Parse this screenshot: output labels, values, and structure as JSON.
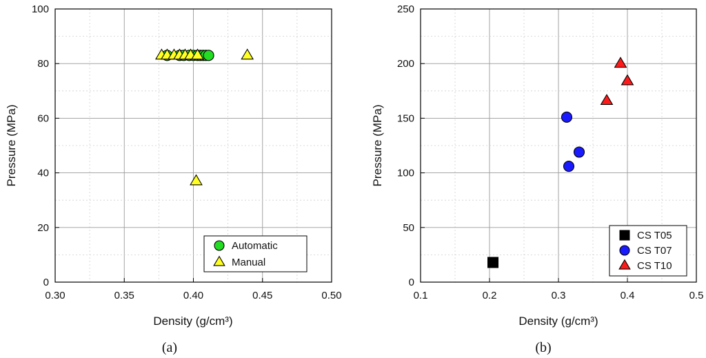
{
  "chart_data": [
    {
      "type": "scatter",
      "panel_label": "(a)",
      "xlabel": "Density (g/cm³)",
      "ylabel": "Pressure (MPa)",
      "xlim": [
        0.3,
        0.5
      ],
      "ylim": [
        0,
        100
      ],
      "xticks": [
        "0.30",
        "0.35",
        "0.40",
        "0.45",
        "0.50"
      ],
      "yticks": [
        "0",
        "20",
        "40",
        "60",
        "80",
        "100"
      ],
      "grid": true,
      "legend_position": "bottom-right",
      "series": [
        {
          "name": "Automatic",
          "marker": "circle",
          "color": "#22dd22",
          "x": [
            0.381,
            0.39,
            0.393,
            0.397,
            0.4,
            0.403,
            0.405,
            0.407,
            0.409,
            0.411
          ],
          "y": [
            83,
            83,
            83,
            83,
            83,
            83,
            83,
            83,
            83,
            83
          ]
        },
        {
          "name": "Manual",
          "marker": "triangle",
          "color": "#ffff22",
          "x": [
            0.377,
            0.381,
            0.386,
            0.39,
            0.394,
            0.398,
            0.403,
            0.439,
            0.402
          ],
          "y": [
            83,
            83,
            83,
            83,
            83,
            83,
            83,
            83,
            37
          ]
        }
      ]
    },
    {
      "type": "scatter",
      "panel_label": "(b)",
      "xlabel": "Density (g/cm³)",
      "ylabel": "Pressure (MPa)",
      "xlim": [
        0.1,
        0.5
      ],
      "ylim": [
        0,
        250
      ],
      "xticks": [
        "0.1",
        "0.2",
        "0.3",
        "0.4",
        "0.5"
      ],
      "yticks": [
        "0",
        "50",
        "100",
        "150",
        "200",
        "250"
      ],
      "grid": true,
      "legend_position": "bottom-right",
      "series": [
        {
          "name": "CS T05",
          "marker": "square",
          "color": "#000000",
          "x": [
            0.205
          ],
          "y": [
            18
          ]
        },
        {
          "name": "CS T07",
          "marker": "circle",
          "color": "#1a1aff",
          "x": [
            0.312,
            0.315,
            0.33
          ],
          "y": [
            151,
            106,
            119
          ]
        },
        {
          "name": "CS T10",
          "marker": "triangle",
          "color": "#ff1a1a",
          "x": [
            0.37,
            0.39,
            0.4
          ],
          "y": [
            166,
            200,
            184
          ]
        }
      ]
    }
  ]
}
